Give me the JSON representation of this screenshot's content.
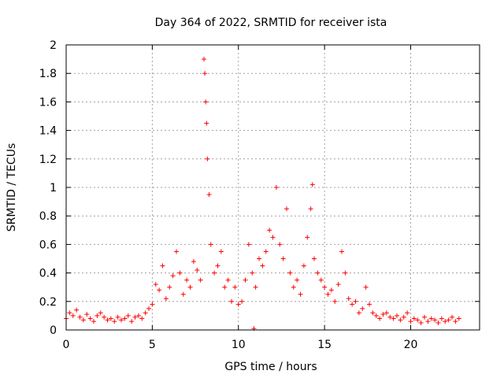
{
  "chart_data": {
    "type": "scatter",
    "title": "Day 364 of 2022, SRMTID for receiver ista",
    "xlabel": "GPS time / hours",
    "ylabel": "SRMTID / TECUs",
    "xlim": [
      0,
      24
    ],
    "ylim": [
      0,
      2
    ],
    "x_ticks": [
      0,
      5,
      10,
      15,
      20
    ],
    "x_tick_labels": [
      "0",
      "5",
      "10",
      "15",
      "20"
    ],
    "y_ticks": [
      0,
      0.2,
      0.4,
      0.6,
      0.8,
      1,
      1.2,
      1.4,
      1.6,
      1.8,
      2
    ],
    "y_tick_labels": [
      "0",
      "0.2",
      "0.4",
      "0.6",
      "0.8",
      "1",
      "1.2",
      "1.4",
      "1.6",
      "1.8",
      "2"
    ],
    "grid": true,
    "marker": "+",
    "color": "#ff0000",
    "series": [
      {
        "name": "SRMTID",
        "x": [
          0.0,
          0.2,
          0.4,
          0.6,
          0.8,
          1.0,
          1.2,
          1.4,
          1.6,
          1.8,
          2.0,
          2.2,
          2.4,
          2.6,
          2.8,
          3.0,
          3.2,
          3.4,
          3.6,
          3.8,
          4.0,
          4.2,
          4.4,
          4.6,
          4.8,
          5.0,
          5.2,
          5.4,
          5.6,
          5.8,
          6.0,
          6.2,
          6.4,
          6.6,
          6.8,
          7.0,
          7.2,
          7.4,
          7.6,
          7.8,
          8.0,
          8.05,
          8.1,
          8.15,
          8.2,
          8.3,
          8.4,
          8.6,
          8.8,
          9.0,
          9.2,
          9.4,
          9.6,
          9.8,
          10.0,
          10.2,
          10.4,
          10.6,
          10.8,
          10.9,
          11.0,
          11.2,
          11.4,
          11.6,
          11.8,
          12.0,
          12.2,
          12.4,
          12.6,
          12.8,
          13.0,
          13.2,
          13.4,
          13.6,
          13.8,
          14.0,
          14.2,
          14.3,
          14.4,
          14.6,
          14.8,
          15.0,
          15.2,
          15.4,
          15.6,
          15.8,
          16.0,
          16.2,
          16.4,
          16.6,
          16.8,
          17.0,
          17.2,
          17.4,
          17.6,
          17.8,
          18.0,
          18.2,
          18.4,
          18.6,
          18.8,
          19.0,
          19.2,
          19.4,
          19.6,
          19.8,
          20.0,
          20.2,
          20.4,
          20.6,
          20.8,
          21.0,
          21.2,
          21.4,
          21.6,
          21.8,
          22.0,
          22.2,
          22.4,
          22.6,
          22.8
        ],
        "y": [
          0.08,
          0.12,
          0.1,
          0.14,
          0.09,
          0.07,
          0.11,
          0.08,
          0.06,
          0.1,
          0.12,
          0.09,
          0.07,
          0.08,
          0.06,
          0.09,
          0.07,
          0.08,
          0.1,
          0.06,
          0.09,
          0.1,
          0.08,
          0.12,
          0.15,
          0.18,
          0.32,
          0.28,
          0.45,
          0.22,
          0.3,
          0.38,
          0.55,
          0.4,
          0.25,
          0.35,
          0.3,
          0.48,
          0.42,
          0.35,
          1.9,
          1.8,
          1.6,
          1.45,
          1.2,
          0.95,
          0.6,
          0.4,
          0.45,
          0.55,
          0.3,
          0.35,
          0.2,
          0.3,
          0.18,
          0.2,
          0.35,
          0.6,
          0.4,
          0.01,
          0.3,
          0.5,
          0.45,
          0.55,
          0.7,
          0.65,
          1.0,
          0.6,
          0.5,
          0.85,
          0.4,
          0.3,
          0.35,
          0.25,
          0.45,
          0.65,
          0.85,
          1.02,
          0.5,
          0.4,
          0.35,
          0.3,
          0.25,
          0.28,
          0.2,
          0.32,
          0.55,
          0.4,
          0.22,
          0.18,
          0.2,
          0.12,
          0.15,
          0.3,
          0.18,
          0.12,
          0.1,
          0.08,
          0.11,
          0.12,
          0.09,
          0.08,
          0.1,
          0.07,
          0.09,
          0.12,
          0.06,
          0.08,
          0.07,
          0.05,
          0.09,
          0.06,
          0.08,
          0.07,
          0.05,
          0.08,
          0.06,
          0.07,
          0.09,
          0.06,
          0.08
        ]
      }
    ]
  }
}
